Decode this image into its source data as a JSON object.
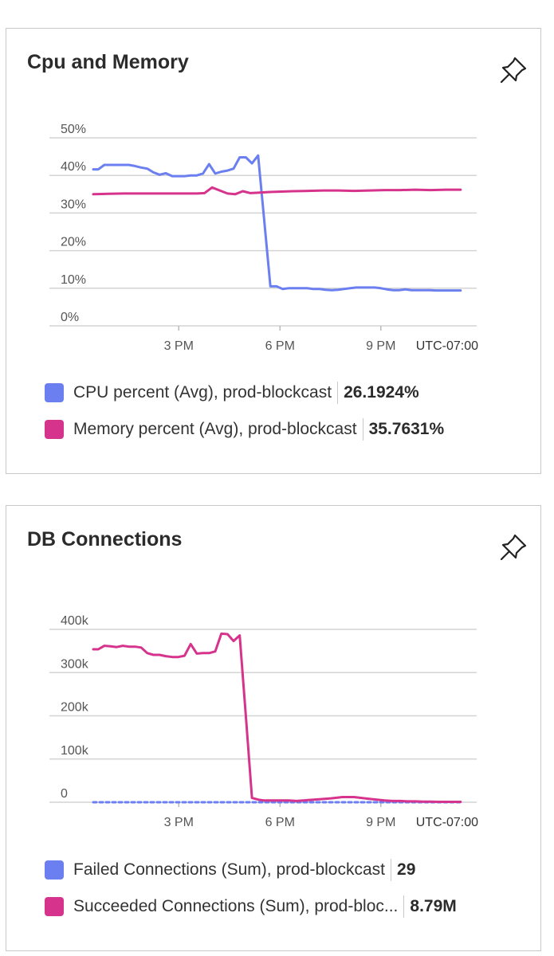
{
  "charts": [
    {
      "title": "Cpu and Memory",
      "chart_data": {
        "type": "line",
        "title": "Cpu and Memory",
        "ylim": [
          0,
          50
        ],
        "yticks": [
          0,
          10,
          20,
          30,
          40,
          50
        ],
        "ytick_labels": [
          "0%",
          "10%",
          "20%",
          "30%",
          "40%",
          "50%"
        ],
        "xlim": [
          0,
          100
        ],
        "xticks": [
          {
            "x": 22.3,
            "label": "3 PM"
          },
          {
            "x": 48.7,
            "label": "6 PM"
          },
          {
            "x": 75.0,
            "label": "9 PM"
          }
        ],
        "timezone_label": "UTC-07:00",
        "series": [
          {
            "name": "CPU percent (Avg), prod-blockcast",
            "color": "#6b7ff0",
            "value_label": "26.1924%",
            "x": [
              0,
              1.3,
              2.9,
              4.5,
              6.1,
              7.7,
              9.3,
              10.9,
              12.5,
              14.1,
              15.7,
              17.3,
              18.9,
              20.6,
              22.2,
              23.8,
              25.4,
              27.0,
              28.6,
              30.2,
              31.8,
              33.4,
              35.0,
              36.6,
              38.2,
              39.8,
              41.4,
              43.0,
              44.6,
              46.2,
              47.8,
              49.4,
              51.0,
              52.6,
              54.2,
              55.8,
              57.4,
              59.0,
              60.6,
              62.2,
              63.8,
              65.4,
              67.0,
              68.6,
              70.2,
              71.8,
              73.4,
              75.0,
              76.6,
              78.2,
              79.8,
              81.4,
              83.0,
              84.6,
              86.2,
              87.8,
              89.4,
              91.0,
              92.6,
              94.2,
              95.8
            ],
            "values": [
              41.6,
              41.6,
              42.8,
              42.8,
              42.8,
              42.8,
              42.8,
              42.5,
              42.1,
              41.8,
              40.8,
              40.2,
              40.6,
              39.8,
              39.8,
              39.8,
              40.0,
              40.0,
              40.5,
              43.0,
              40.5,
              41.0,
              41.3,
              41.8,
              44.8,
              44.8,
              43.2,
              45.3,
              28.0,
              10.5,
              10.5,
              9.8,
              10.0,
              10.0,
              10.0,
              10.0,
              9.8,
              9.8,
              9.6,
              9.5,
              9.6,
              9.8,
              10.0,
              10.2,
              10.2,
              10.2,
              10.2,
              10.0,
              9.7,
              9.5,
              9.5,
              9.7,
              9.5,
              9.5,
              9.5,
              9.5,
              9.4,
              9.4,
              9.4,
              9.4,
              9.4
            ]
          },
          {
            "name": "Memory percent (Avg), prod-blockcast",
            "color": "#d6338c",
            "value_label": "35.7631%",
            "x": [
              0,
              4,
              8,
              12,
              16,
              20,
              24,
              27,
              29,
              31,
              33,
              35,
              37,
              39,
              41,
              43,
              46,
              49,
              52,
              56,
              60,
              64,
              68,
              72,
              76,
              80,
              84,
              88,
              92,
              95.8
            ],
            "values": [
              35.0,
              35.1,
              35.2,
              35.2,
              35.2,
              35.2,
              35.2,
              35.2,
              35.3,
              36.8,
              36.0,
              35.2,
              35.0,
              35.8,
              35.3,
              35.4,
              35.6,
              35.7,
              35.8,
              35.9,
              36.0,
              36.0,
              35.9,
              36.0,
              36.1,
              36.1,
              36.2,
              36.1,
              36.2,
              36.2
            ]
          }
        ]
      }
    },
    {
      "title": "DB Connections",
      "chart_data": {
        "type": "line",
        "title": "DB Connections",
        "ylim": [
          0,
          400000
        ],
        "yticks": [
          0,
          100000,
          200000,
          300000,
          400000
        ],
        "ytick_labels": [
          "0",
          "100k",
          "200k",
          "300k",
          "400k"
        ],
        "xlim": [
          0,
          100
        ],
        "xticks": [
          {
            "x": 22.3,
            "label": "3 PM"
          },
          {
            "x": 48.7,
            "label": "6 PM"
          },
          {
            "x": 75.0,
            "label": "9 PM"
          }
        ],
        "timezone_label": "UTC-07:00",
        "series": [
          {
            "name": "Failed Connections (Sum), prod-blockcast",
            "color": "#6b7ff0",
            "dashed": true,
            "value_label": "29",
            "x": [
              0,
              95.8
            ],
            "values": [
              0,
              0
            ]
          },
          {
            "name": "Succeeded Connections (Sum), prod-bloc...",
            "color": "#d6338c",
            "value_label": "8.79M",
            "x": [
              0,
              1.3,
              2.9,
              4.5,
              6.1,
              7.7,
              9.3,
              10.9,
              12.5,
              14.1,
              15.7,
              17.3,
              18.9,
              20.6,
              22.2,
              23.8,
              25.4,
              27.0,
              28.6,
              30.2,
              31.8,
              33.4,
              35.0,
              36.6,
              38.2,
              39.8,
              41.4,
              43.0,
              44.6,
              46.2,
              47.8,
              49.4,
              51.0,
              53.0,
              56.0,
              59.0,
              62.0,
              65.0,
              68.0,
              70.0,
              72.0,
              74.0,
              76.0,
              78.0,
              80.0,
              82.0,
              84.0,
              86.0,
              88.0,
              90.0,
              92.0,
              94.0,
              95.8
            ],
            "values": [
              354000,
              354000,
              362000,
              361000,
              359000,
              362000,
              360000,
              360000,
              358000,
              345000,
              341000,
              341000,
              338000,
              336000,
              336000,
              339000,
              366000,
              344000,
              345000,
              345000,
              349000,
              390000,
              389000,
              373000,
              386000,
              200000,
              10000,
              6000,
              4000,
              4000,
              4000,
              4000,
              4000,
              3000,
              5000,
              7000,
              9000,
              12000,
              12000,
              10000,
              8000,
              6000,
              4000,
              3000,
              3000,
              2000,
              2000,
              1500,
              1500,
              1000,
              1000,
              1000,
              1000
            ]
          }
        ]
      }
    }
  ]
}
